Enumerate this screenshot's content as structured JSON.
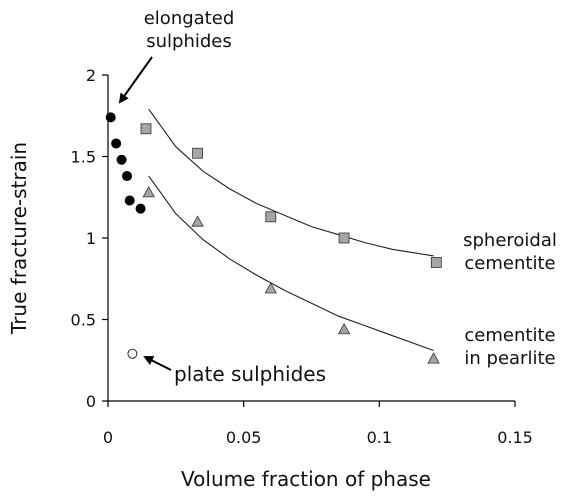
{
  "chart_data": {
    "type": "scatter",
    "xlabel": "Volume fraction of phase",
    "ylabel": "True fracture-strain",
    "xlim": [
      0,
      0.15
    ],
    "ylim": [
      0,
      2
    ],
    "xticks": [
      0,
      0.05,
      0.1,
      0.15
    ],
    "xtick_labels": [
      "0",
      "0.05",
      "0.1",
      "0.15"
    ],
    "yticks": [
      0,
      0.5,
      1,
      1.5,
      2
    ],
    "ytick_labels": [
      "0",
      "0.5",
      "1",
      "1.5",
      "2"
    ],
    "grid": false,
    "series": [
      {
        "marker": "circle",
        "color": "#000000",
        "x": [
          0.001,
          0.003,
          0.005,
          0.007,
          0.008,
          0.012
        ],
        "y": [
          1.74,
          1.58,
          1.48,
          1.38,
          1.23,
          1.18
        ]
      },
      {
        "marker": "circle-open",
        "color": "#ffffff",
        "x": [
          0.009
        ],
        "y": [
          0.29
        ]
      },
      {
        "marker": "square",
        "color": "#a6a6a6",
        "x": [
          0.014,
          0.033,
          0.06,
          0.087,
          0.121
        ],
        "y": [
          1.67,
          1.52,
          1.13,
          1.0,
          0.85
        ]
      },
      {
        "marker": "triangle",
        "color": "#a6a6a6",
        "x": [
          0.015,
          0.033,
          0.06,
          0.087,
          0.12
        ],
        "y": [
          1.28,
          1.1,
          0.69,
          0.44,
          0.26
        ]
      }
    ],
    "fits": [
      {
        "x": [
          0.015,
          0.025,
          0.035,
          0.045,
          0.055,
          0.065,
          0.075,
          0.085,
          0.095,
          0.105,
          0.12
        ],
        "y": [
          1.79,
          1.56,
          1.41,
          1.3,
          1.21,
          1.14,
          1.07,
          1.02,
          0.97,
          0.93,
          0.89
        ]
      },
      {
        "x": [
          0.015,
          0.025,
          0.035,
          0.045,
          0.055,
          0.065,
          0.075,
          0.085,
          0.095,
          0.105,
          0.12
        ],
        "y": [
          1.38,
          1.15,
          0.99,
          0.87,
          0.77,
          0.68,
          0.6,
          0.52,
          0.46,
          0.4,
          0.31
        ]
      }
    ],
    "annotations": {
      "elongated_line1": "elongated",
      "elongated_line2": "sulphides",
      "plate": "plate sulphides",
      "spheroidal_line1": "spheroidal",
      "spheroidal_line2": "cementite",
      "pearlite_line1": "cementite",
      "pearlite_line2": "in pearlite"
    }
  }
}
